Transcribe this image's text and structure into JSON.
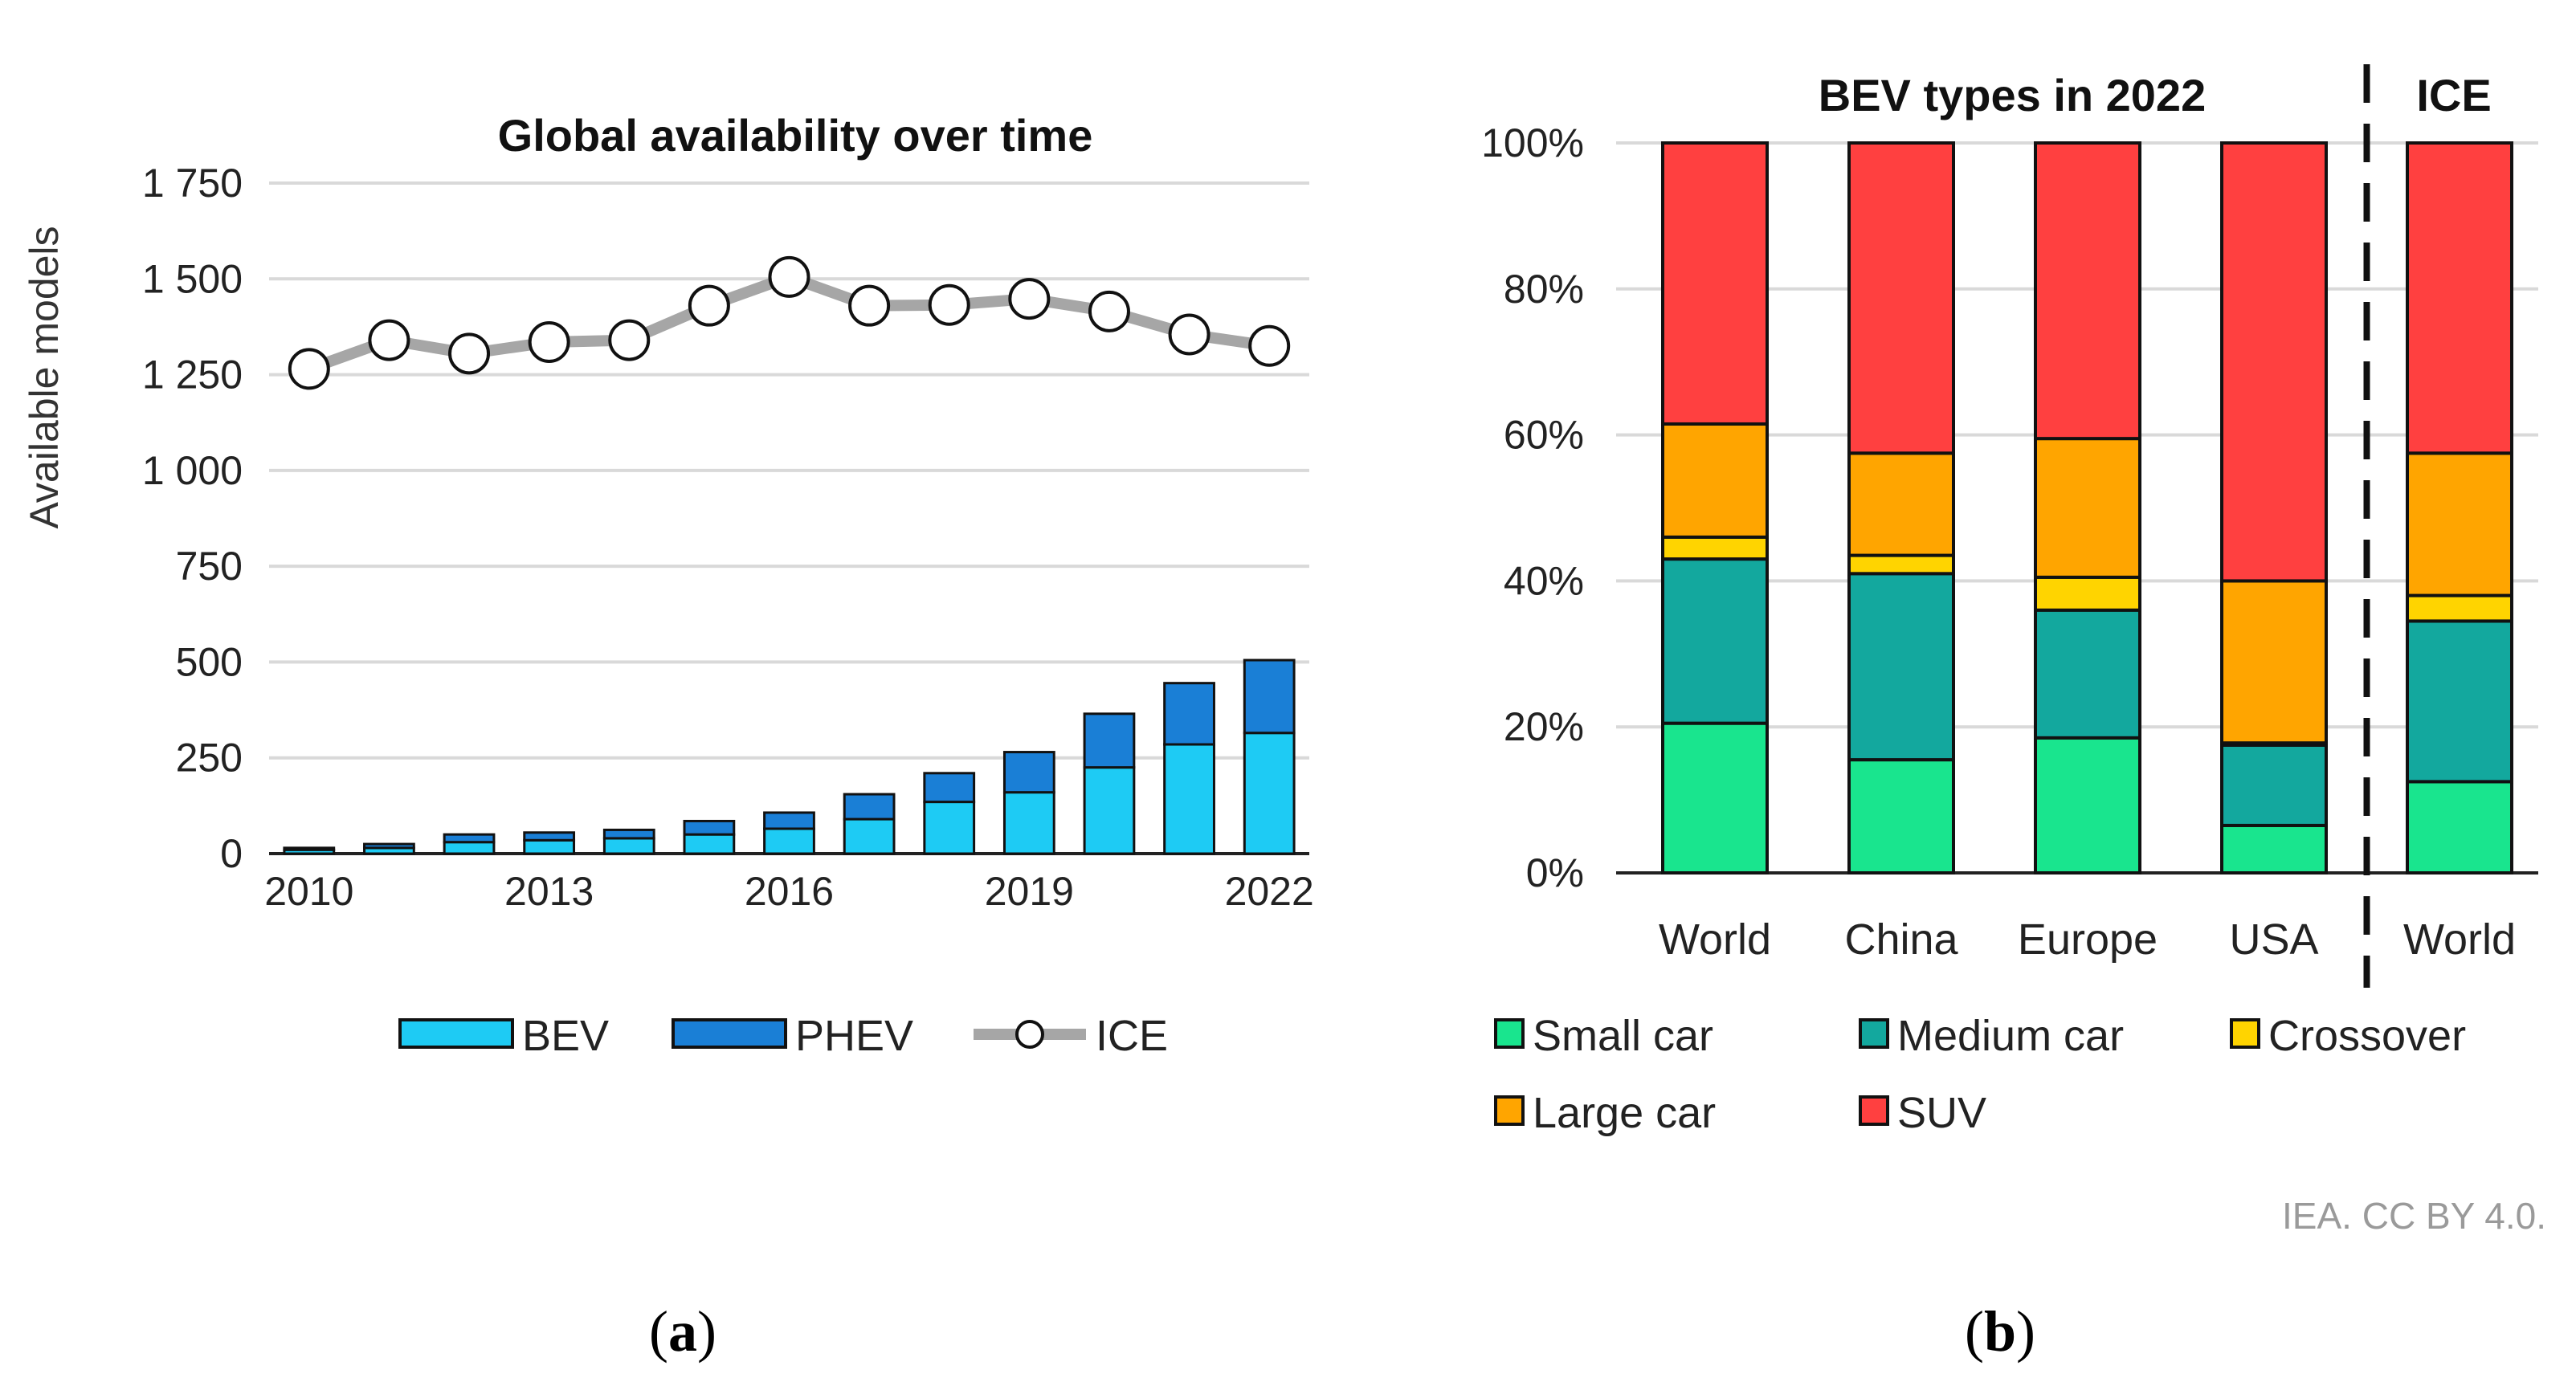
{
  "chart_data": [
    {
      "type": "bar",
      "panel_label_parts": [
        "(",
        "a",
        ")"
      ],
      "title": "Global availability over time",
      "ylabel": "Available models",
      "xlabel": "",
      "x": [
        2010,
        2011,
        2012,
        2013,
        2014,
        2015,
        2016,
        2017,
        2018,
        2019,
        2020,
        2021,
        2022
      ],
      "x_tick_labels": [
        "2010",
        "2013",
        "2016",
        "2019",
        "2022"
      ],
      "x_tick_values": [
        2010,
        2013,
        2016,
        2019,
        2022
      ],
      "y_ticks": [
        0,
        250,
        500,
        750,
        1000,
        1250,
        1500,
        1750
      ],
      "y_tick_labels": [
        "0",
        "250",
        "500",
        "750",
        "1 000",
        "1 250",
        "1 500",
        "1 750"
      ],
      "ylim": [
        0,
        1750
      ],
      "grid": true,
      "legend_position": "bottom",
      "stacked": true,
      "series": [
        {
          "name": "BEV",
          "type": "bar",
          "color": "#1ECBF4",
          "values": [
            10,
            15,
            30,
            35,
            40,
            50,
            65,
            90,
            135,
            160,
            225,
            285,
            315
          ]
        },
        {
          "name": "PHEV",
          "type": "bar",
          "color": "#1A7FD6",
          "values": [
            5,
            10,
            20,
            20,
            22,
            35,
            42,
            65,
            75,
            105,
            140,
            160,
            190
          ]
        },
        {
          "name": "ICE",
          "type": "line",
          "color": "#A6A6A6",
          "values": [
            1265,
            1340,
            1305,
            1335,
            1340,
            1430,
            1505,
            1430,
            1432,
            1448,
            1415,
            1355,
            1325
          ]
        }
      ]
    },
    {
      "type": "bar",
      "panel_label_parts": [
        "(",
        "b",
        ")"
      ],
      "title": "BEV types in 2022",
      "secondary_title": "ICE",
      "xlabel": "",
      "ylabel": "",
      "categories": [
        "World",
        "China",
        "Europe",
        "USA",
        "World"
      ],
      "y_ticks": [
        0,
        20,
        40,
        60,
        80,
        100
      ],
      "y_tick_labels": [
        "0%",
        "20%",
        "40%",
        "60%",
        "80%",
        "100%"
      ],
      "ylim": [
        0,
        100
      ],
      "unit": "%",
      "grid": true,
      "legend_position": "bottom",
      "stacked": true,
      "divider_after_category_index": 3,
      "series": [
        {
          "name": "Small car",
          "color": "#19E58E",
          "values": [
            20.5,
            15.5,
            18.5,
            6.5,
            12.5
          ]
        },
        {
          "name": "Medium car",
          "color": "#13A89E",
          "values": [
            22.5,
            25.5,
            17.5,
            11,
            22
          ]
        },
        {
          "name": "Crossover",
          "color": "#FFD400",
          "values": [
            3,
            2.5,
            4.5,
            0.3,
            3.5
          ]
        },
        {
          "name": "Large car",
          "color": "#FFA500",
          "values": [
            15.5,
            14,
            19,
            22.2,
            19.5
          ]
        },
        {
          "name": "SUV",
          "color": "#FF4040",
          "values": [
            38.5,
            42.5,
            40.5,
            60,
            42.5
          ]
        }
      ]
    }
  ],
  "credit": "IEA. CC BY 4.0."
}
